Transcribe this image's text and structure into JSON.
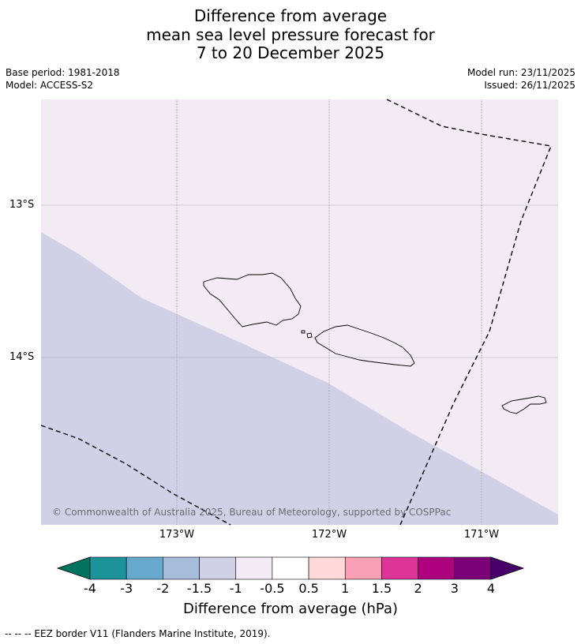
{
  "title": {
    "line1": "Difference from average",
    "line2": "mean sea level pressure forecast for",
    "line3": "7 to 20 December 2025"
  },
  "meta": {
    "base_period": "Base period: 1981-2018",
    "model": "Model: ACCESS-S2",
    "model_run": "Model run: 23/11/2025",
    "issued": "Issued: 26/11/2025"
  },
  "map": {
    "latitude_labels": [
      "13°S",
      "14°S"
    ],
    "longitude_labels": [
      "173°W",
      "172°W",
      "171°W"
    ],
    "copyright": "© Commonwealth of Australia 2025, Bureau of Meteorology, supported by COSPPac",
    "region_colors": {
      "-1_to_-0.5": "#f3ebf4",
      "-1.5_to_-1": "#d0d1e6"
    }
  },
  "colorbar": {
    "title": "Difference from average (hPa)",
    "tick_labels": [
      "-4",
      "-3",
      "-2",
      "-1.5",
      "-1",
      "-0.5",
      "0.5",
      "1",
      "1.5",
      "2",
      "3",
      "4"
    ],
    "colors": [
      "#1b9398",
      "#67a9cf",
      "#a6bddb",
      "#d0d1e6",
      "#f3ebf4",
      "#ffffff",
      "#fdd9d9",
      "#fa9fb5",
      "#dd3497",
      "#ae017e",
      "#7a0177"
    ],
    "under_color": "#01735f",
    "over_color": "#49006a"
  },
  "footer": {
    "legend": "--  --  -- EEZ border V11 (Flanders Marine Institute, 2019)."
  }
}
